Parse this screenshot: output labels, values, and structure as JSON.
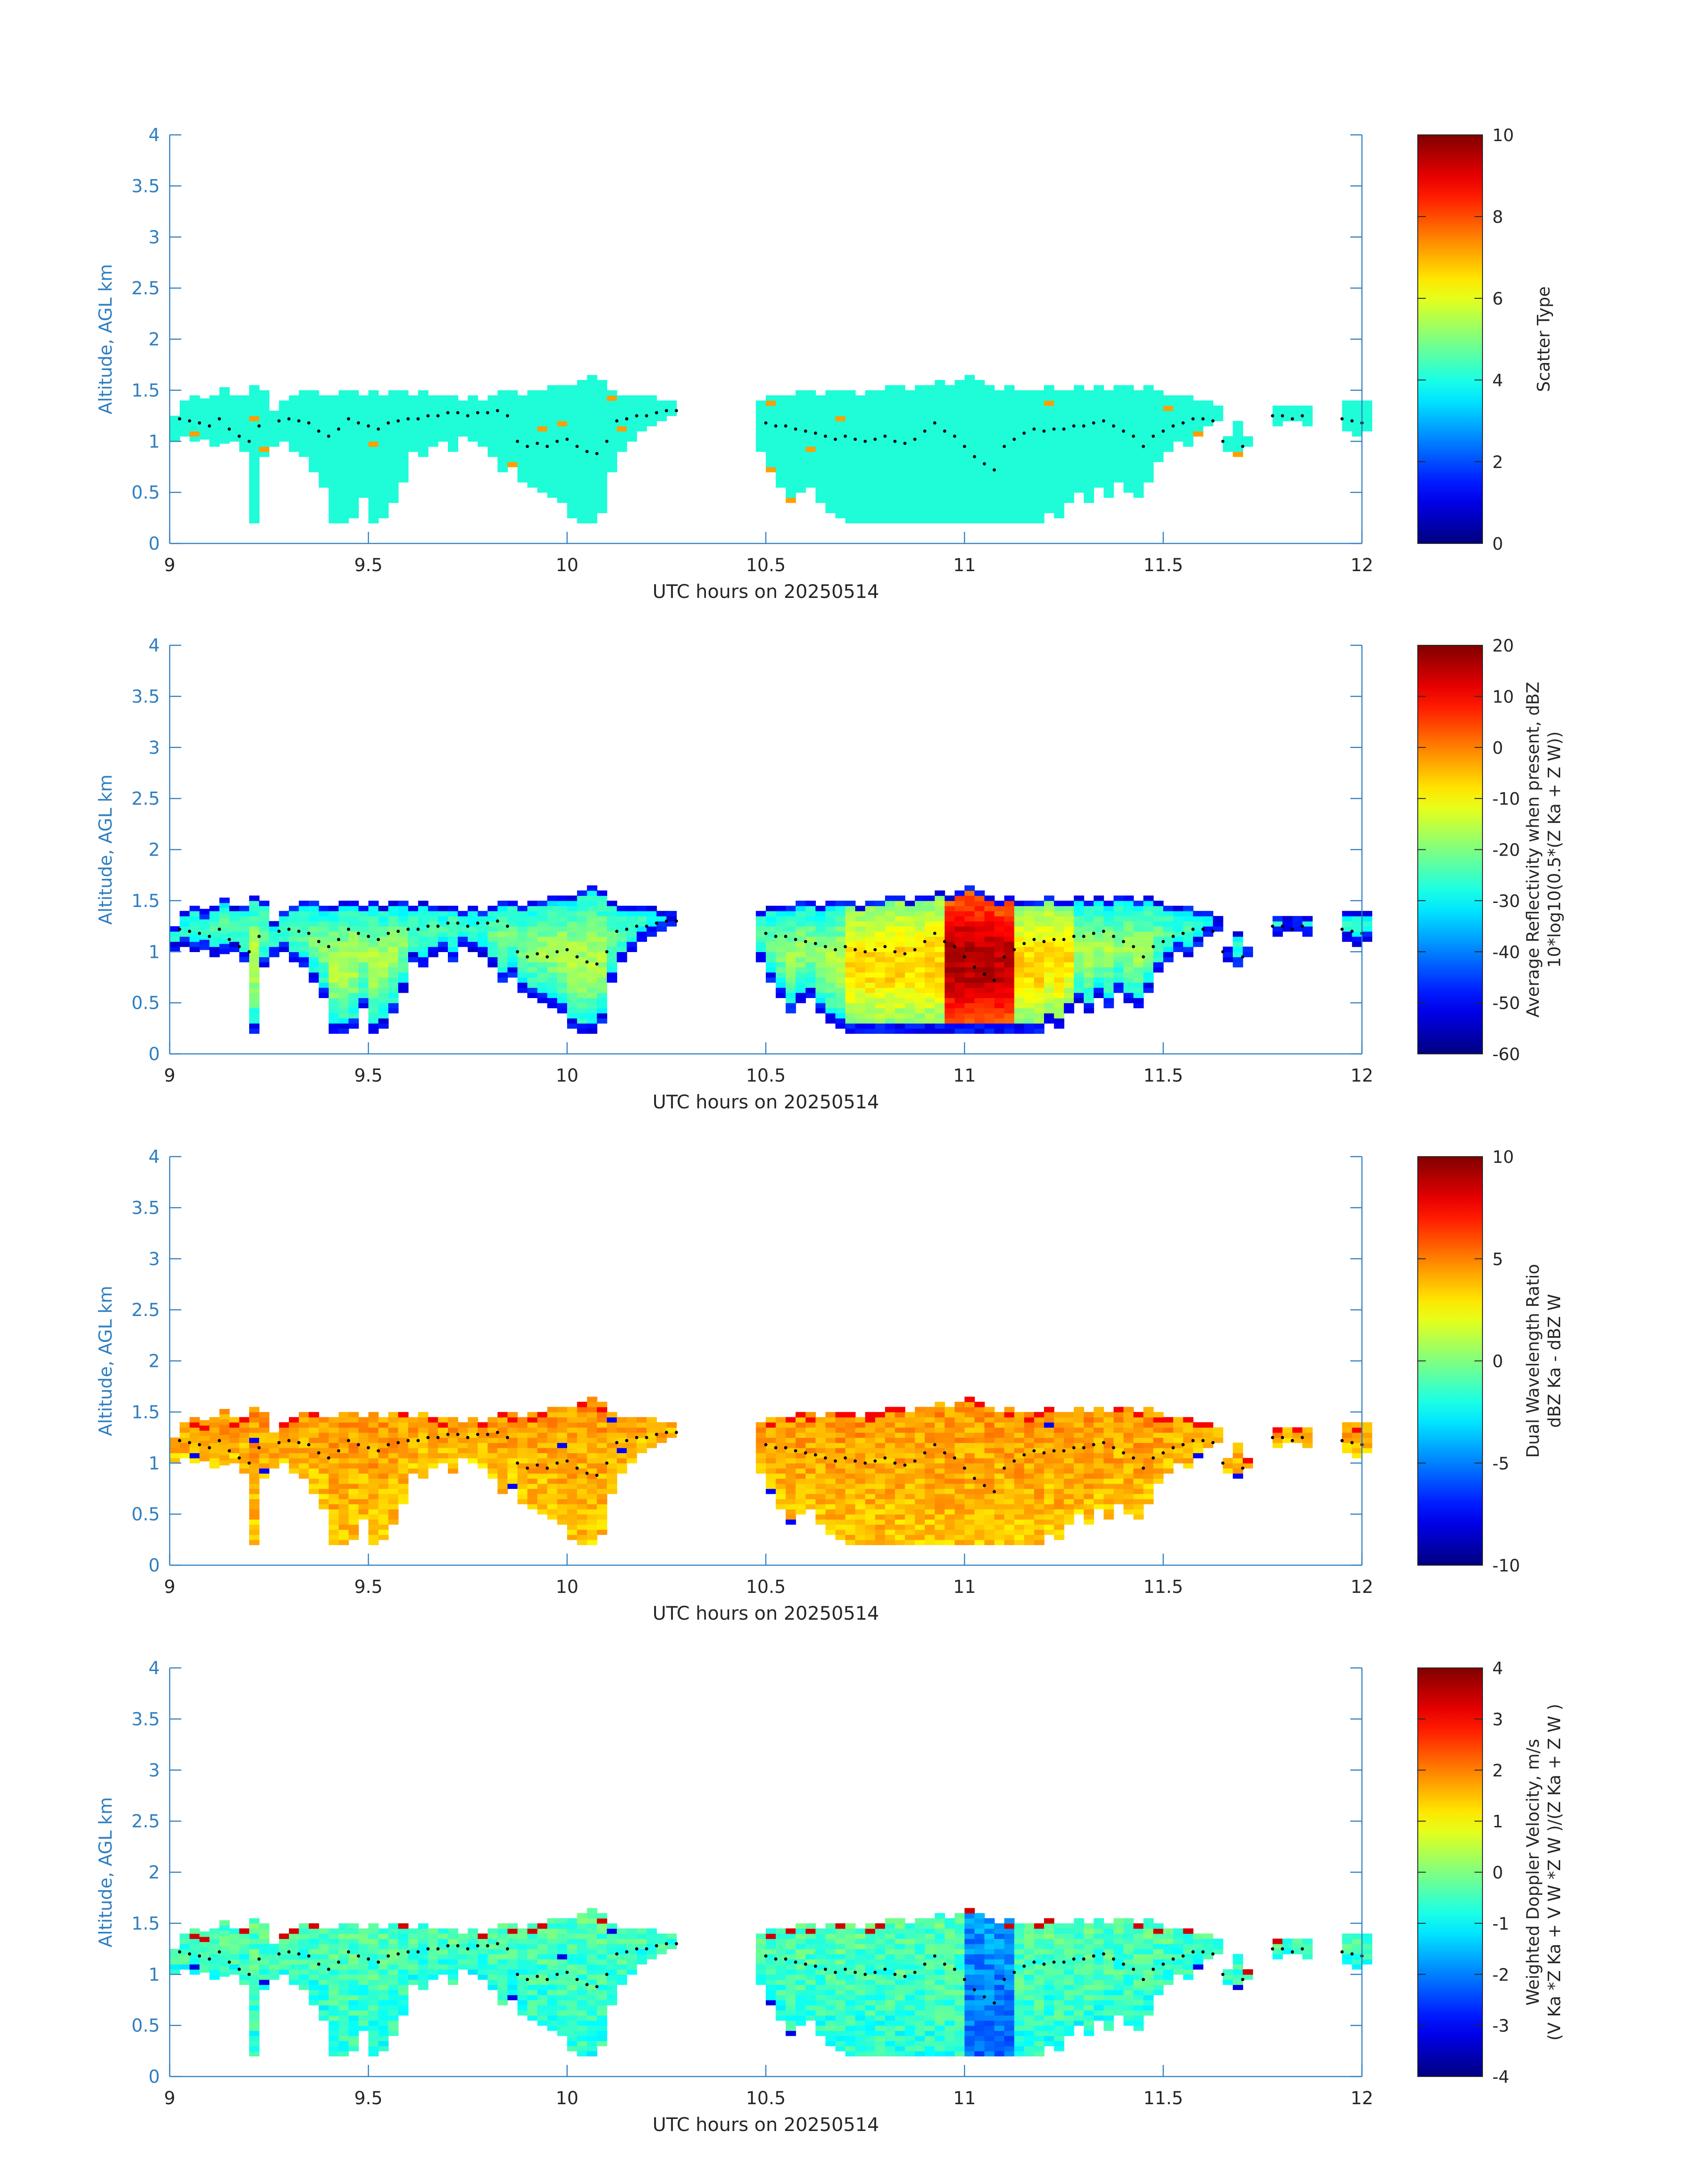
{
  "chart_data": [
    {
      "type": "heatmap",
      "ylabel": "Altitude, AGL km",
      "xlabel": "UTC hours on 20250514",
      "xlim": [
        9,
        12
      ],
      "ylim": [
        0,
        4
      ],
      "xticks": [
        "9",
        "9.5",
        "10",
        "10.5",
        "11",
        "11.5",
        "12"
      ],
      "yticks": [
        "0",
        "0.5",
        "1",
        "1.5",
        "2",
        "2.5",
        "3",
        "3.5",
        "4"
      ],
      "colorbar": {
        "label_lines": [
          "Scatter Type"
        ],
        "min": 0,
        "max": 10,
        "ticks": [
          "0",
          "2",
          "4",
          "6",
          "8",
          "10"
        ]
      },
      "field": "scatter_type",
      "colormap": "jet"
    },
    {
      "type": "heatmap",
      "ylabel": "Altitude, AGL km",
      "xlabel": "UTC hours on 20250514",
      "xlim": [
        9,
        12
      ],
      "ylim": [
        0,
        4
      ],
      "xticks": [
        "9",
        "9.5",
        "10",
        "10.5",
        "11",
        "11.5",
        "12"
      ],
      "yticks": [
        "0",
        "0.5",
        "1",
        "1.5",
        "2",
        "2.5",
        "3",
        "3.5",
        "4"
      ],
      "colorbar": {
        "label_lines": [
          "Average Reflectivity when present, dBZ",
          "10*log10(0.5*(Z Ka + Z W))"
        ],
        "min": -60,
        "max": 20,
        "ticks": [
          "-60",
          "-50",
          "-40",
          "-30",
          "-20",
          "-10",
          "0",
          "10",
          "20"
        ]
      },
      "field": "reflectivity",
      "colormap": "jet"
    },
    {
      "type": "heatmap",
      "ylabel": "Altitude, AGL km",
      "xlabel": "UTC hours on 20250514",
      "xlim": [
        9,
        12
      ],
      "ylim": [
        0,
        4
      ],
      "xticks": [
        "9",
        "9.5",
        "10",
        "10.5",
        "11",
        "11.5",
        "12"
      ],
      "yticks": [
        "0",
        "0.5",
        "1",
        "1.5",
        "2",
        "2.5",
        "3",
        "3.5",
        "4"
      ],
      "colorbar": {
        "label_lines": [
          "Dual Wavelength Ratio",
          "dBZ Ka - dBZ W"
        ],
        "min": -10,
        "max": 10,
        "ticks": [
          "-10",
          "-5",
          "0",
          "5",
          "10"
        ]
      },
      "field": "dwr",
      "colormap": "jet"
    },
    {
      "type": "heatmap",
      "ylabel": "Altitude, AGL km",
      "xlabel": "UTC hours on 20250514",
      "xlim": [
        9,
        12
      ],
      "ylim": [
        0,
        4
      ],
      "xticks": [
        "9",
        "9.5",
        "10",
        "10.5",
        "11",
        "11.5",
        "12"
      ],
      "yticks": [
        "0",
        "0.5",
        "1",
        "1.5",
        "2",
        "2.5",
        "3",
        "3.5",
        "4"
      ],
      "colorbar": {
        "label_lines": [
          "Weighted Doppler Velocity, m/s",
          "(V Ka *Z Ka + V W *Z W )/(Z Ka + Z W )"
        ],
        "min": -4,
        "max": 4,
        "ticks": [
          "-4",
          "-3",
          "-2",
          "-1",
          "0",
          "1",
          "2",
          "3",
          "4"
        ]
      },
      "field": "velocity",
      "colormap": "jet"
    }
  ],
  "cloud_mask": {
    "x_step_hours": 0.025,
    "segments": [
      {
        "x": [
          9.0,
          9.0
        ],
        "top": 1.25,
        "base": 1.0
      },
      {
        "x": [
          9.025,
          9.175
        ],
        "top": [
          1.38,
          1.42,
          1.38,
          1.45,
          1.5,
          1.42,
          1.45
        ],
        "base": [
          1.05,
          1.0,
          1.02,
          0.95,
          0.98,
          1.0,
          0.9
        ]
      },
      {
        "x": [
          9.2,
          9.225
        ],
        "top": [
          1.55,
          1.5
        ],
        "base": [
          0.2,
          0.85
        ]
      },
      {
        "x": [
          9.25,
          9.375
        ],
        "top": [
          1.3,
          1.38,
          1.45,
          1.5,
          1.48,
          1.45
        ],
        "base": [
          0.95,
          1.0,
          0.9,
          0.85,
          0.7,
          0.55
        ]
      },
      {
        "x": [
          9.4,
          9.475
        ],
        "top": [
          1.45,
          1.48,
          1.5,
          1.45
        ],
        "base": [
          0.2,
          0.2,
          0.25,
          0.45
        ]
      },
      {
        "x": [
          9.5,
          9.575
        ],
        "top": [
          1.48,
          1.45,
          1.5,
          1.48
        ],
        "base": [
          0.2,
          0.25,
          0.4,
          0.6
        ]
      },
      {
        "x": [
          9.6,
          9.775
        ],
        "top": [
          1.45,
          1.48,
          1.45,
          1.42,
          1.45,
          1.4,
          1.42,
          1.38
        ],
        "base": [
          0.9,
          0.85,
          0.95,
          1.0,
          0.9,
          1.05,
          1.0,
          0.95
        ]
      },
      {
        "x": [
          9.8,
          9.975
        ],
        "top": [
          1.45,
          1.5,
          1.48,
          1.45,
          1.48,
          1.5,
          1.52,
          1.55
        ],
        "base": [
          0.85,
          0.7,
          0.75,
          0.6,
          0.55,
          0.5,
          0.45,
          0.4
        ]
      },
      {
        "x": [
          10.0,
          10.075
        ],
        "top": [
          1.55,
          1.6,
          1.62,
          1.58
        ],
        "base": [
          0.25,
          0.2,
          0.2,
          0.3
        ]
      },
      {
        "x": [
          10.1,
          10.25
        ],
        "top": [
          1.48,
          1.45,
          1.42,
          1.45,
          1.42,
          1.4,
          1.38
        ],
        "base": [
          0.7,
          0.9,
          1.0,
          1.1,
          1.15,
          1.2,
          1.25
        ]
      },
      {
        "x": [
          10.475,
          10.575
        ],
        "top": [
          1.4,
          1.42,
          1.45,
          1.45,
          1.48
        ],
        "base": [
          0.9,
          0.7,
          0.55,
          0.4,
          0.5
        ]
      },
      {
        "x": [
          10.6,
          10.975
        ],
        "top": [
          1.48,
          1.45,
          1.48,
          1.5,
          1.48,
          1.45,
          1.48,
          1.5,
          1.52,
          1.55,
          1.5,
          1.52,
          1.55,
          1.58,
          1.55,
          1.6
        ],
        "base": [
          0.55,
          0.4,
          0.3,
          0.25,
          0.2,
          0.2,
          0.2,
          0.2,
          0.2,
          0.2,
          0.2,
          0.2,
          0.2,
          0.2,
          0.2,
          0.2
        ]
      },
      {
        "x": [
          11.0,
          11.3
        ],
        "top": [
          1.62,
          1.58,
          1.55,
          1.5,
          1.52,
          1.5,
          1.48,
          1.5,
          1.52,
          1.48,
          1.5,
          1.52,
          1.5
        ],
        "base": [
          0.2,
          0.2,
          0.2,
          0.2,
          0.2,
          0.2,
          0.2,
          0.2,
          0.3,
          0.25,
          0.4,
          0.5,
          0.4
        ]
      },
      {
        "x": [
          11.325,
          11.475
        ],
        "top": [
          1.55,
          1.5,
          1.52,
          1.55,
          1.5,
          1.52,
          1.48
        ],
        "base": [
          0.55,
          0.45,
          0.6,
          0.5,
          0.45,
          0.6,
          0.8
        ]
      },
      {
        "x": [
          11.5,
          11.625
        ],
        "top": [
          1.45,
          1.42,
          1.45,
          1.4,
          1.38,
          1.35
        ],
        "base": [
          0.9,
          1.0,
          0.95,
          1.05,
          1.15,
          1.2
        ]
      },
      {
        "x": [
          11.65,
          11.7
        ],
        "top": [
          1.05,
          1.2,
          1.05
        ],
        "base": [
          0.9,
          0.85,
          0.95
        ]
      },
      {
        "x": [
          11.775,
          11.85
        ],
        "top": [
          1.35,
          1.35,
          1.35,
          1.35
        ],
        "base": [
          1.15,
          1.2,
          1.2,
          1.15
        ]
      },
      {
        "x": [
          11.95,
          12.0
        ],
        "top": [
          1.38,
          1.38,
          1.38
        ],
        "base": [
          1.1,
          1.05,
          1.1
        ]
      }
    ]
  },
  "cloud_base_dots": [
    [
      9.025,
      1.22
    ],
    [
      9.05,
      1.2
    ],
    [
      9.075,
      1.18
    ],
    [
      9.1,
      1.15
    ],
    [
      9.125,
      1.22
    ],
    [
      9.15,
      1.12
    ],
    [
      9.175,
      1.05
    ],
    [
      9.2,
      1.0
    ],
    [
      9.225,
      1.15
    ],
    [
      9.275,
      1.2
    ],
    [
      9.3,
      1.22
    ],
    [
      9.325,
      1.2
    ],
    [
      9.35,
      1.18
    ],
    [
      9.375,
      1.1
    ],
    [
      9.4,
      1.05
    ],
    [
      9.425,
      1.12
    ],
    [
      9.45,
      1.22
    ],
    [
      9.475,
      1.18
    ],
    [
      9.5,
      1.15
    ],
    [
      9.525,
      1.12
    ],
    [
      9.55,
      1.18
    ],
    [
      9.575,
      1.2
    ],
    [
      9.6,
      1.22
    ],
    [
      9.625,
      1.22
    ],
    [
      9.65,
      1.25
    ],
    [
      9.675,
      1.25
    ],
    [
      9.7,
      1.28
    ],
    [
      9.725,
      1.28
    ],
    [
      9.75,
      1.25
    ],
    [
      9.775,
      1.28
    ],
    [
      9.8,
      1.28
    ],
    [
      9.825,
      1.3
    ],
    [
      9.85,
      1.25
    ],
    [
      9.875,
      1.0
    ],
    [
      9.9,
      0.95
    ],
    [
      9.925,
      0.98
    ],
    [
      9.95,
      0.95
    ],
    [
      9.975,
      1.0
    ],
    [
      10.0,
      1.02
    ],
    [
      10.025,
      0.95
    ],
    [
      10.05,
      0.9
    ],
    [
      10.075,
      0.88
    ],
    [
      10.1,
      1.0
    ],
    [
      10.125,
      1.2
    ],
    [
      10.15,
      1.22
    ],
    [
      10.175,
      1.25
    ],
    [
      10.2,
      1.25
    ],
    [
      10.225,
      1.28
    ],
    [
      10.25,
      1.3
    ],
    [
      10.275,
      1.3
    ],
    [
      10.5,
      1.18
    ],
    [
      10.525,
      1.15
    ],
    [
      10.55,
      1.15
    ],
    [
      10.575,
      1.12
    ],
    [
      10.6,
      1.1
    ],
    [
      10.625,
      1.08
    ],
    [
      10.65,
      1.05
    ],
    [
      10.675,
      1.02
    ],
    [
      10.7,
      1.05
    ],
    [
      10.725,
      1.02
    ],
    [
      10.75,
      1.0
    ],
    [
      10.775,
      1.02
    ],
    [
      10.8,
      1.05
    ],
    [
      10.825,
      1.0
    ],
    [
      10.85,
      0.98
    ],
    [
      10.875,
      1.02
    ],
    [
      10.9,
      1.1
    ],
    [
      10.925,
      1.18
    ],
    [
      10.95,
      1.1
    ],
    [
      10.975,
      1.05
    ],
    [
      11.0,
      0.95
    ],
    [
      11.025,
      0.85
    ],
    [
      11.05,
      0.78
    ],
    [
      11.075,
      0.72
    ],
    [
      11.1,
      0.95
    ],
    [
      11.125,
      1.02
    ],
    [
      11.15,
      1.08
    ],
    [
      11.175,
      1.12
    ],
    [
      11.2,
      1.1
    ],
    [
      11.225,
      1.12
    ],
    [
      11.25,
      1.12
    ],
    [
      11.275,
      1.15
    ],
    [
      11.3,
      1.15
    ],
    [
      11.325,
      1.18
    ],
    [
      11.35,
      1.2
    ],
    [
      11.375,
      1.15
    ],
    [
      11.4,
      1.1
    ],
    [
      11.425,
      1.05
    ],
    [
      11.45,
      0.95
    ],
    [
      11.475,
      1.05
    ],
    [
      11.5,
      1.1
    ],
    [
      11.525,
      1.15
    ],
    [
      11.55,
      1.18
    ],
    [
      11.575,
      1.22
    ],
    [
      11.6,
      1.22
    ],
    [
      11.625,
      1.2
    ],
    [
      11.65,
      1.0
    ],
    [
      11.7,
      0.95
    ],
    [
      11.775,
      1.25
    ],
    [
      11.8,
      1.25
    ],
    [
      11.825,
      1.22
    ],
    [
      11.85,
      1.25
    ],
    [
      11.95,
      1.22
    ],
    [
      11.975,
      1.2
    ],
    [
      12.0,
      1.18
    ]
  ],
  "colors": {
    "axis": "#2f7fc1",
    "text": "#262626",
    "scatter_fill": "#1efcd8"
  }
}
